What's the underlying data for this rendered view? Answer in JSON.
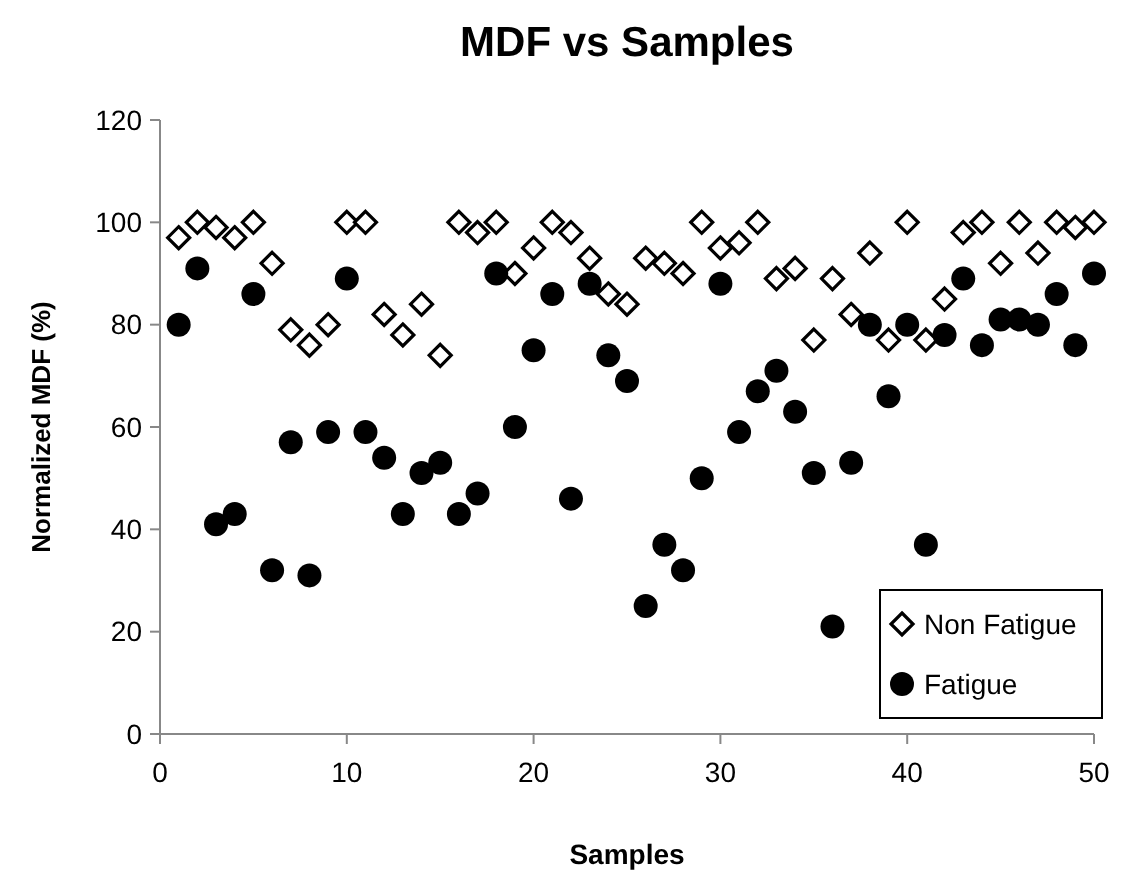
{
  "chart_data": {
    "type": "scatter",
    "title": "MDF vs Samples",
    "xlabel": "Samples",
    "ylabel": "Normalized MDF (%)",
    "xlim": [
      0,
      50
    ],
    "xticks": [
      0,
      10,
      20,
      30,
      40,
      50
    ],
    "ylim": [
      0,
      120
    ],
    "yticks": [
      0,
      20,
      40,
      60,
      80,
      100,
      120
    ],
    "grid": false,
    "legend": "bottom right",
    "series": [
      {
        "name": "Non Fatigue",
        "color": "#000000",
        "marker": "diamond",
        "x": [
          1,
          2,
          3,
          4,
          5,
          6,
          7,
          8,
          9,
          10,
          11,
          12,
          13,
          14,
          15,
          16,
          17,
          18,
          19,
          20,
          21,
          22,
          23,
          24,
          25,
          26,
          27,
          28,
          29,
          30,
          31,
          32,
          33,
          34,
          35,
          36,
          37,
          38,
          39,
          40,
          41,
          42,
          43,
          44,
          45,
          46,
          47,
          48,
          49,
          50
        ],
        "values": [
          97,
          100,
          99,
          97,
          100,
          92,
          79,
          76,
          80,
          100,
          100,
          82,
          78,
          84,
          74,
          100,
          98,
          100,
          90,
          95,
          100,
          98,
          93,
          86,
          84,
          93,
          92,
          90,
          100,
          95,
          96,
          100,
          89,
          91,
          77,
          89,
          82,
          94,
          77,
          100,
          77,
          85,
          98,
          100,
          92,
          100,
          94,
          100,
          99,
          100
        ]
      },
      {
        "name": "Fatigue",
        "color": "#000000",
        "marker": "circle",
        "x": [
          1,
          2,
          3,
          4,
          5,
          6,
          7,
          8,
          9,
          10,
          11,
          12,
          13,
          14,
          15,
          16,
          17,
          18,
          19,
          20,
          21,
          22,
          23,
          24,
          25,
          26,
          27,
          28,
          29,
          30,
          31,
          32,
          33,
          34,
          35,
          36,
          37,
          38,
          39,
          40,
          41,
          42,
          43,
          44,
          45,
          46,
          47,
          48,
          49,
          50
        ],
        "values": [
          80,
          91,
          41,
          43,
          86,
          32,
          57,
          31,
          59,
          89,
          59,
          54,
          43,
          51,
          53,
          43,
          47,
          90,
          60,
          75,
          86,
          46,
          88,
          74,
          69,
          25,
          37,
          32,
          50,
          88,
          59,
          67,
          71,
          63,
          51,
          21,
          53,
          80,
          66,
          80,
          37,
          78,
          89,
          76,
          81,
          81,
          80,
          86,
          76,
          90
        ]
      }
    ]
  }
}
